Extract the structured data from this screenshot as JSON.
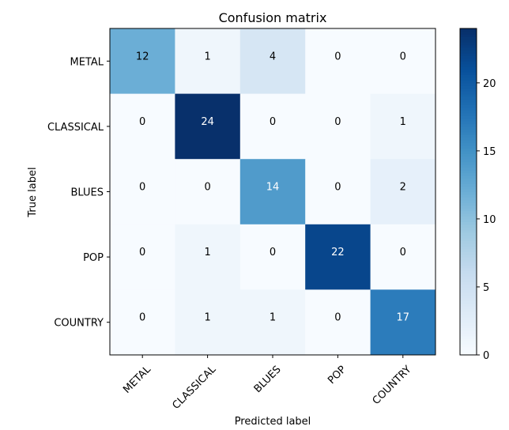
{
  "chart_data": {
    "type": "heatmap",
    "title": "Confusion matrix",
    "xlabel": "Predicted label",
    "ylabel": "True label",
    "x_categories": [
      "METAL",
      "CLASSICAL",
      "BLUES",
      "POP",
      "COUNTRY"
    ],
    "y_categories": [
      "METAL",
      "CLASSICAL",
      "BLUES",
      "POP",
      "COUNTRY"
    ],
    "values": [
      [
        12,
        1,
        4,
        0,
        0
      ],
      [
        0,
        24,
        0,
        0,
        1
      ],
      [
        0,
        0,
        14,
        0,
        2
      ],
      [
        0,
        1,
        0,
        22,
        0
      ],
      [
        0,
        1,
        1,
        0,
        17
      ]
    ],
    "colormap": "Blues",
    "colorbar": {
      "range": [
        0,
        24
      ],
      "ticks": [
        0,
        5,
        10,
        15,
        20
      ]
    },
    "grid": false
  }
}
